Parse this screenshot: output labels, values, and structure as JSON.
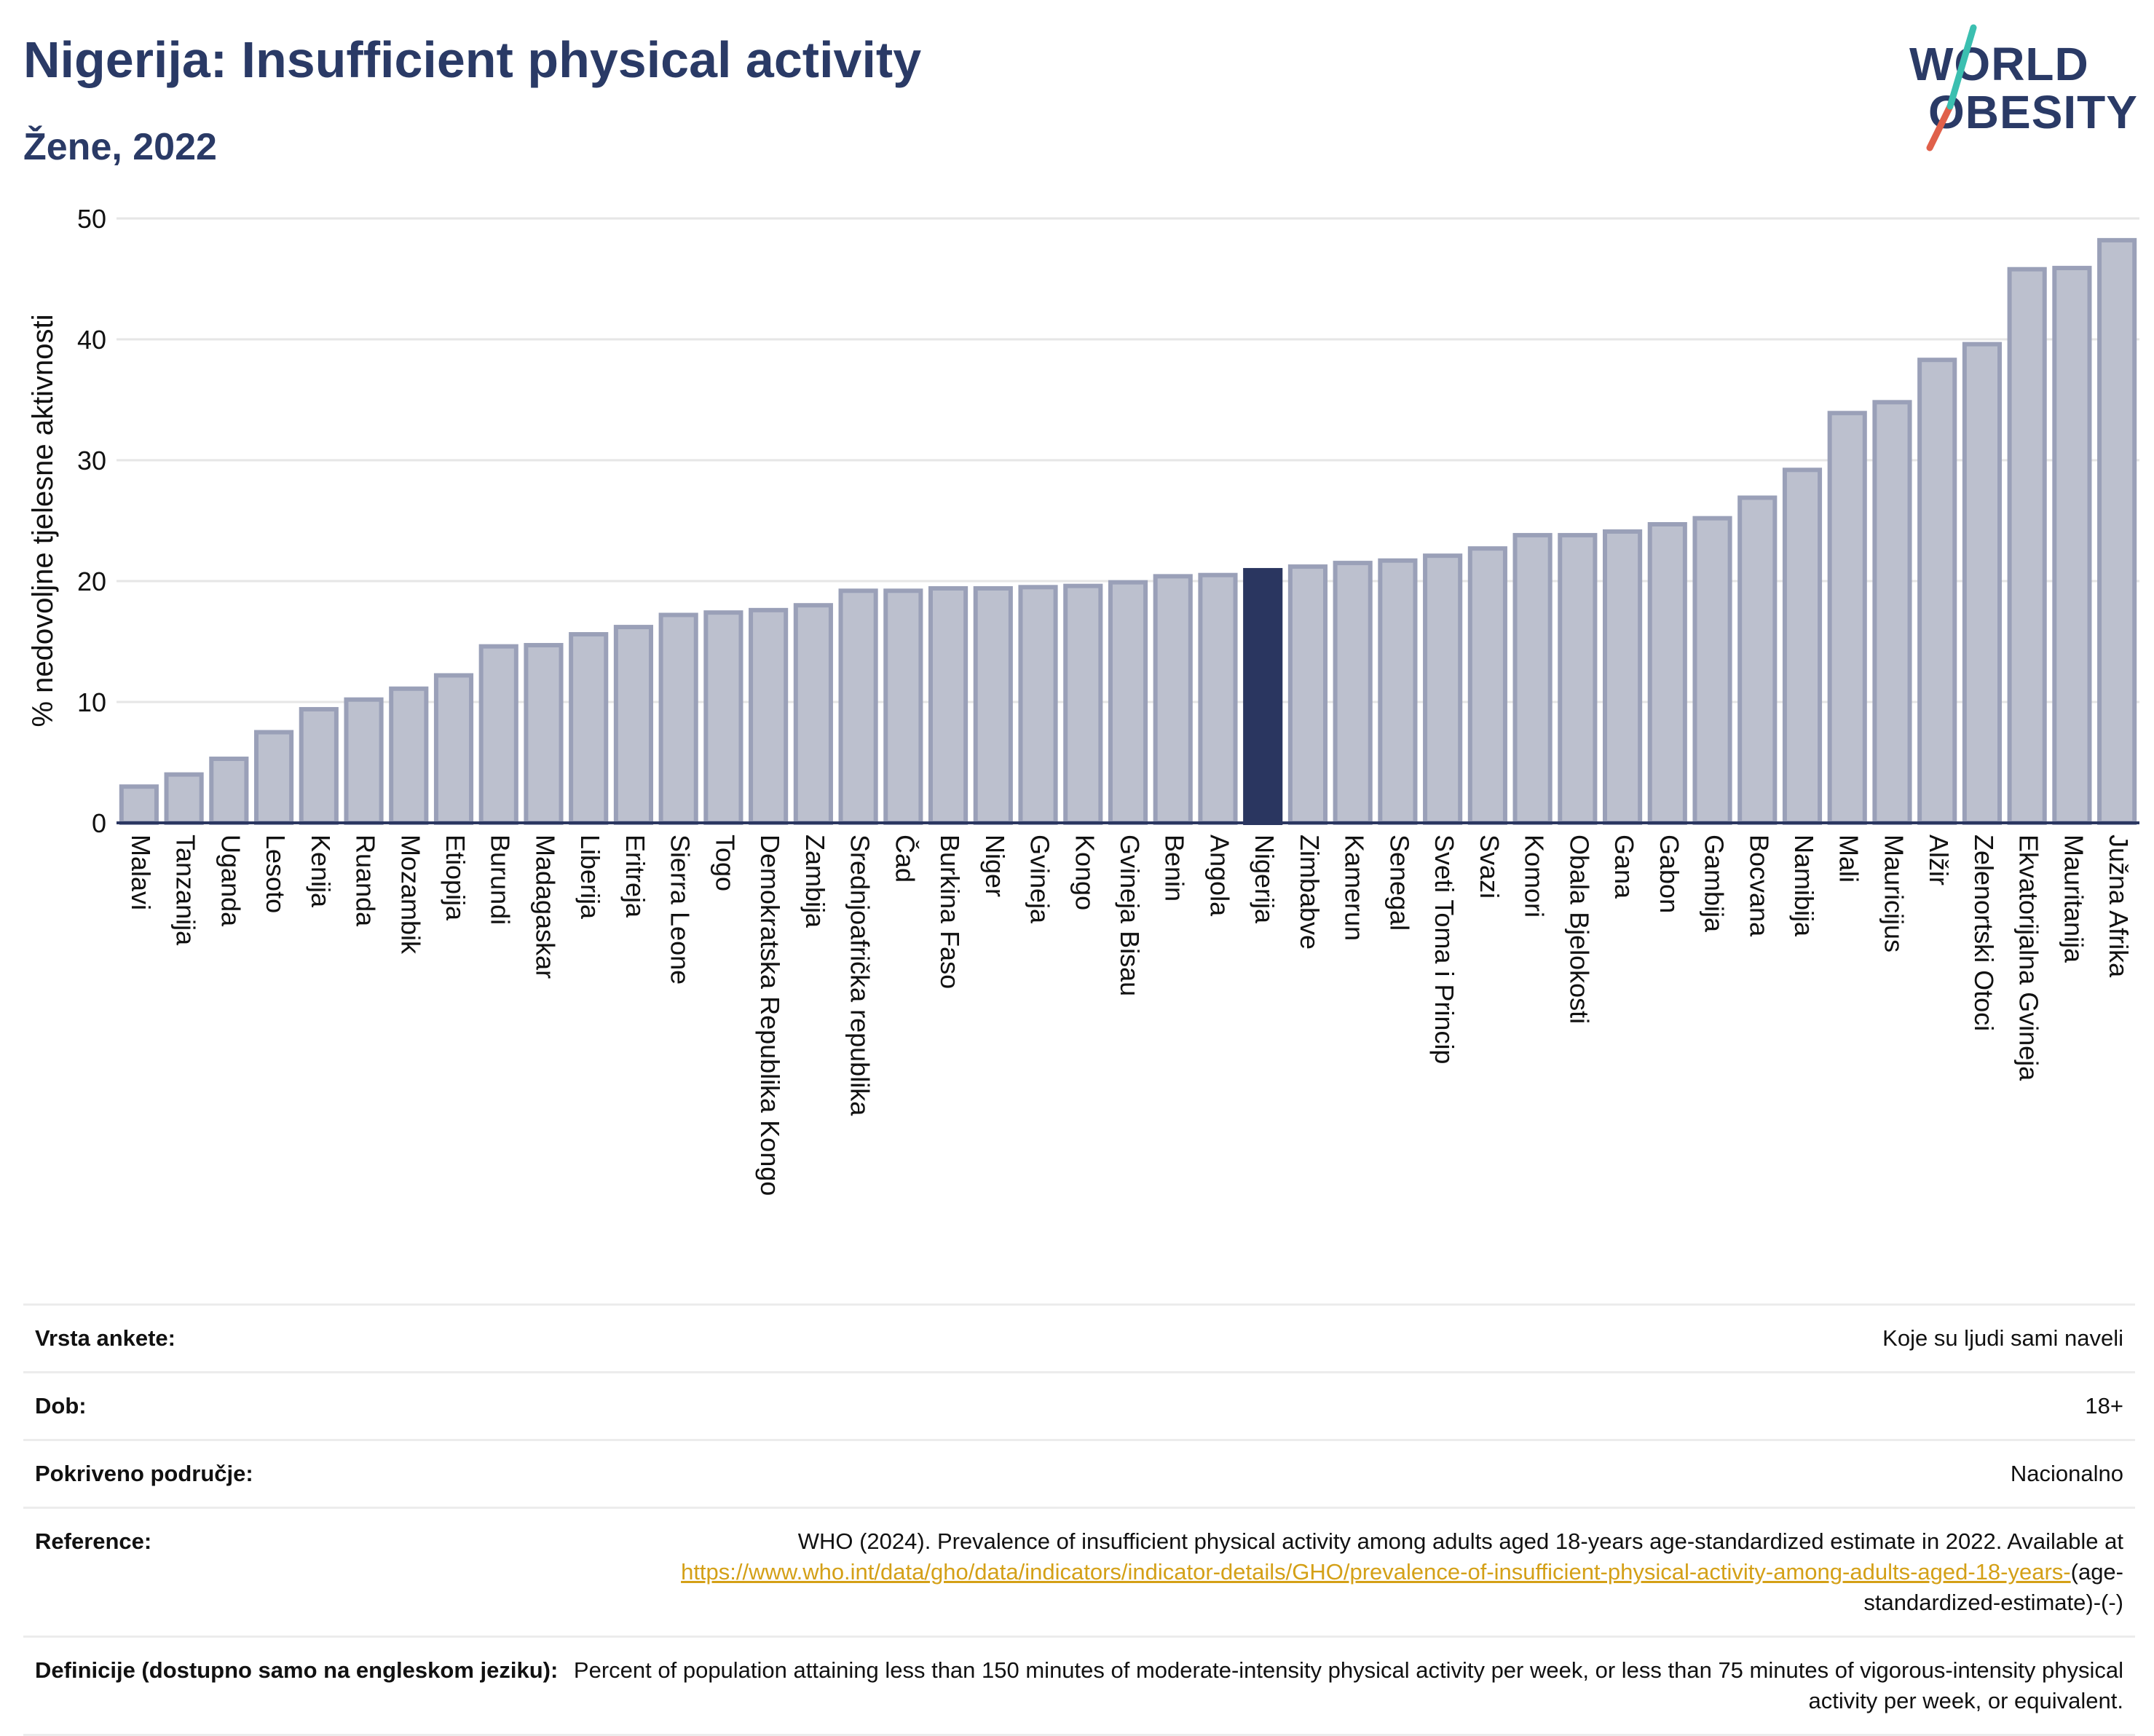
{
  "header": {
    "title": "Nigerija: Insufficient physical activity",
    "subtitle": "Žene, 2022"
  },
  "logo": {
    "line1": "WORLD",
    "line2": "OBESITY",
    "color": "#2a3a66",
    "accent_colors": [
      "#e0604a",
      "#3bbfb0"
    ]
  },
  "colors": {
    "bar_fill": "#bcc0ce",
    "bar_stroke": "#9aa0b8",
    "highlight_fill": "#2a3660",
    "grid": "#e6e6e6",
    "axis": "#2a3660"
  },
  "chart_data": {
    "type": "bar",
    "ylabel": "% nedovoljne tjelesne aktivnosti",
    "ylim": [
      0,
      50
    ],
    "yticks": [
      0,
      10,
      20,
      30,
      40,
      50
    ],
    "grid": true,
    "highlight": "Nigerija",
    "categories": [
      "Malavi",
      "Tanzanija",
      "Uganda",
      "Lesoto",
      "Kenija",
      "Ruanda",
      "Mozambik",
      "Etiopija",
      "Burundi",
      "Madagaskar",
      "Liberija",
      "Eritreja",
      "Sierra Leone",
      "Togo",
      "Demokratska Republika Kongo",
      "Zambija",
      "Srednjoafrička republika",
      "Čad",
      "Burkina Faso",
      "Niger",
      "Gvineja",
      "Kongo",
      "Gvineja Bisau",
      "Benin",
      "Angola",
      "Nigerija",
      "Zimbabve",
      "Kamerun",
      "Senegal",
      "Sveti Toma i Princip",
      "Svazi",
      "Komori",
      "Obala Bjelokosti",
      "Gana",
      "Gabon",
      "Gambija",
      "Bocvana",
      "Namibija",
      "Mali",
      "Mauricijus",
      "Alžir",
      "Zelenortski Otoci",
      "Ekvatorijalna Gvineja",
      "Mauritanija",
      "Južna Afrika"
    ],
    "values": [
      3.0,
      4.0,
      5.3,
      7.5,
      9.4,
      10.2,
      11.1,
      12.2,
      14.6,
      14.7,
      15.6,
      16.2,
      17.2,
      17.4,
      17.6,
      18.0,
      19.2,
      19.2,
      19.4,
      19.4,
      19.5,
      19.6,
      19.9,
      20.4,
      20.5,
      20.9,
      21.2,
      21.5,
      21.7,
      22.1,
      22.7,
      23.8,
      23.8,
      24.1,
      24.7,
      25.2,
      26.9,
      29.2,
      33.9,
      34.8,
      38.3,
      39.6,
      45.8,
      45.9,
      48.2
    ]
  },
  "info": {
    "survey_label": "Vrsta ankete:",
    "survey_value": "Koje su ljudi sami naveli",
    "age_label": "Dob:",
    "age_value": "18+",
    "coverage_label": "Pokriveno područje:",
    "coverage_value": "Nacionalno",
    "reference_label": "Reference:",
    "reference_text": "WHO (2024). Prevalence of insufficient physical activity among adults aged 18-years age-standardized estimate in 2022. Available at",
    "reference_link": "https://www.who.int/data/gho/data/indicators/indicator-details/GHO/prevalence-of-insufficient-physical-activity-among-adults-aged-18-years-",
    "reference_tail": "(age-standardized-estimate)-(-)",
    "definition_label": "Definicije (dostupno samo na engleskom jeziku):",
    "definition_value": "Percent of population attaining less than 150 minutes of moderate-intensity physical activity per week, or less than 75 minutes of vigorous-intensity physical activity per week, or equivalent."
  }
}
